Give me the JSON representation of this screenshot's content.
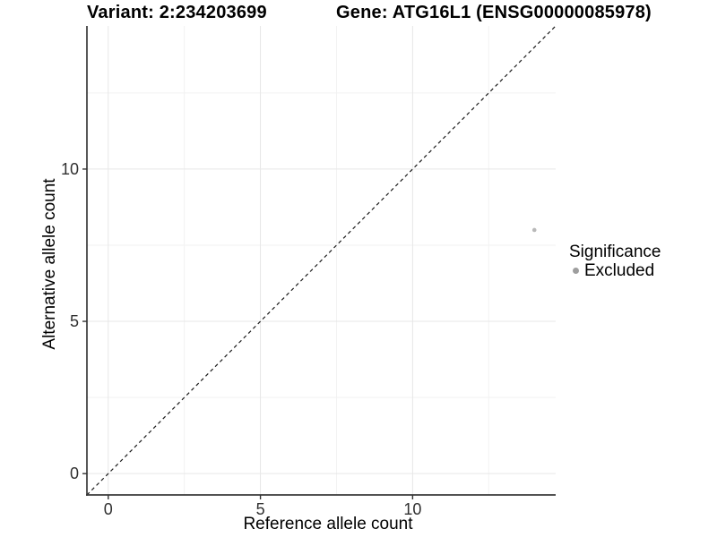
{
  "title": {
    "variant": "Variant: 2:234203699",
    "gene": "Gene: ATG16L1 (ENSG00000085978)"
  },
  "axes": {
    "x_label": "Reference allele count",
    "y_label": "Alternative allele count"
  },
  "legend": {
    "title": "Significance",
    "position": "right",
    "entries": [
      {
        "label": "Excluded",
        "color": "#9e9e9e"
      }
    ]
  },
  "colors": {
    "background": "#ffffff",
    "grid_major": "#e7e7e7",
    "grid_minor": "#f2f2f2",
    "axis_line": "#3a3a3a",
    "tick_mark": "#333333",
    "tick_label": "#303030",
    "title_text": "#000000",
    "identity_line": "#1a1a1a",
    "point": "#b9b9b9"
  },
  "chart_data": {
    "type": "scatter",
    "title": "Variant: 2:234203699   Gene: ATG16L1 (ENSG00000085978)",
    "xlabel": "Reference allele count",
    "ylabel": "Alternative allele count",
    "xlim": [
      -0.7,
      14.7
    ],
    "ylim": [
      -0.7,
      14.7
    ],
    "x_ticks": [
      0,
      5,
      10
    ],
    "y_ticks": [
      0,
      5,
      10
    ],
    "x_minor_gridlines": [
      2.5,
      7.5,
      12.5
    ],
    "y_minor_gridlines": [
      2.5,
      7.5,
      12.5
    ],
    "grid": "major_and_minor",
    "legend_position": "right",
    "series": [
      {
        "name": "Excluded",
        "color": "#b9b9b9",
        "marker": "circle",
        "points": [
          {
            "x": 14,
            "y": 8
          }
        ]
      }
    ],
    "reference_lines": [
      {
        "type": "identity",
        "slope": 1,
        "intercept": 0,
        "style": "dashed",
        "color": "#1a1a1a"
      }
    ]
  }
}
